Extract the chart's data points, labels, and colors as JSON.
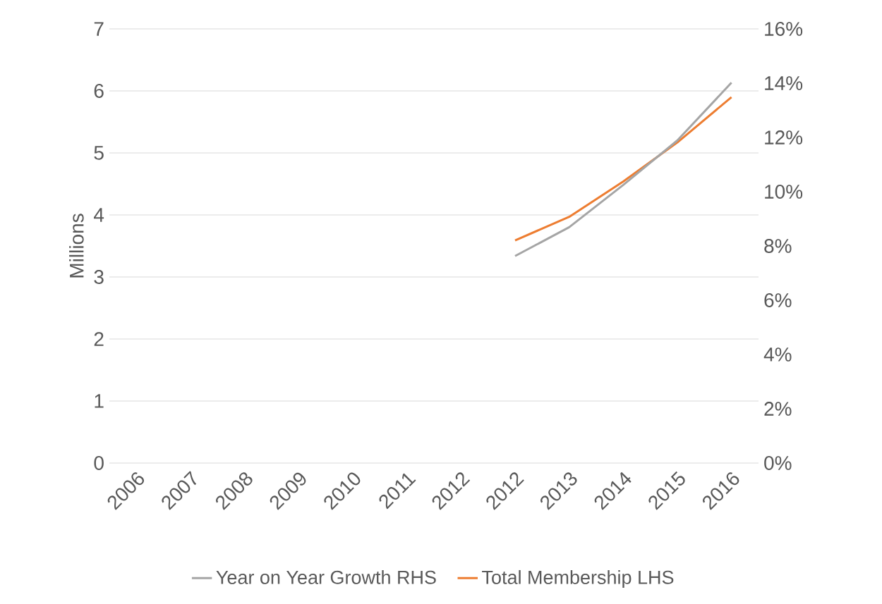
{
  "chart_data": {
    "type": "line",
    "categories": [
      "2006",
      "2007",
      "2008",
      "2009",
      "2010",
      "2011",
      "2012",
      "2012",
      "2013",
      "2014",
      "2015",
      "2016"
    ],
    "ylabel": "Millions",
    "ylim": [
      0,
      7
    ],
    "yticks": [
      0,
      1,
      2,
      3,
      4,
      5,
      6,
      7
    ],
    "y2lim": [
      0,
      16
    ],
    "y2ticks": [
      {
        "value": 0,
        "label": "0%"
      },
      {
        "value": 2,
        "label": "2%"
      },
      {
        "value": 4,
        "label": "4%"
      },
      {
        "value": 6,
        "label": "6%"
      },
      {
        "value": 8,
        "label": "8%"
      },
      {
        "value": 10,
        "label": "10%"
      },
      {
        "value": 12,
        "label": "12%"
      },
      {
        "value": 14,
        "label": "14%"
      },
      {
        "value": 16,
        "label": "16%"
      }
    ],
    "grid": "y",
    "legend": "bottom",
    "series": [
      {
        "name": "Year on Year Growth RHS",
        "color": "#a5a5a5",
        "axis": "y2",
        "values": [
          null,
          null,
          null,
          null,
          null,
          null,
          null,
          7.63,
          8.69,
          10.25,
          11.89,
          14.02
        ]
      },
      {
        "name": "Total Membership LHS",
        "color": "#ed7d31",
        "values": [
          null,
          null,
          null,
          null,
          null,
          null,
          null,
          3.59,
          3.97,
          4.54,
          5.17,
          5.9
        ]
      }
    ]
  }
}
